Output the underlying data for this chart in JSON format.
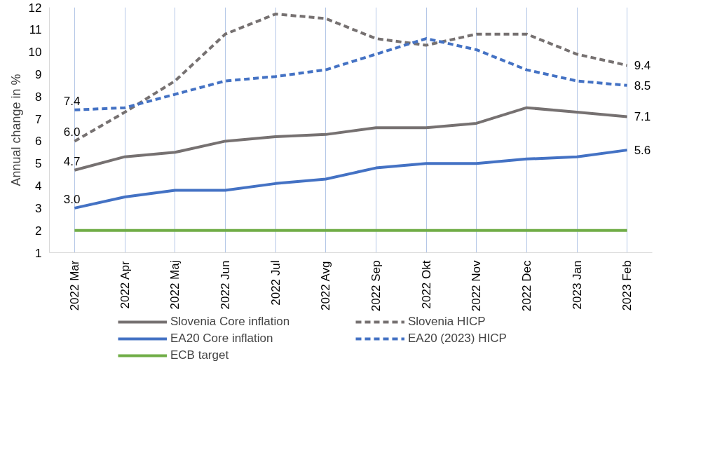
{
  "chart_data": {
    "type": "line",
    "ylabel": "Annual change in %",
    "categories": [
      "2022 Mar",
      "2022 Apr",
      "2022 Maj",
      "2022 Jun",
      "2022 Jul",
      "2022 Avg",
      "2022 Sep",
      "2022 Okt",
      "2022 Nov",
      "2022 Dec",
      "2023 Jan",
      "2023 Feb"
    ],
    "ylim": [
      1,
      12
    ],
    "yticks": [
      1,
      2,
      3,
      4,
      5,
      6,
      7,
      8,
      9,
      10,
      11,
      12
    ],
    "grid": "x",
    "legend": "bottom",
    "marker": "none",
    "series": [
      {
        "name": "Slovenia Core inflation",
        "color": "#767171",
        "line_style": "solid",
        "values": [
          4.7,
          5.3,
          5.5,
          6.0,
          6.2,
          6.3,
          6.6,
          6.6,
          6.8,
          7.5,
          7.3,
          7.1
        ],
        "value_labels": [
          "4.7",
          null,
          null,
          null,
          null,
          null,
          null,
          null,
          null,
          null,
          null,
          "7.1"
        ]
      },
      {
        "name": "Slovenia HICP",
        "color": "#767171",
        "line_style": "dashed",
        "values": [
          6.0,
          7.3,
          8.7,
          10.8,
          11.7,
          11.5,
          10.6,
          10.3,
          10.8,
          10.8,
          9.9,
          9.4
        ],
        "value_labels": [
          "6.0",
          null,
          null,
          null,
          null,
          null,
          null,
          null,
          null,
          null,
          null,
          "9.4"
        ]
      },
      {
        "name": "EA20 Core inflation",
        "color": "#4472c4",
        "line_style": "solid",
        "values": [
          3.0,
          3.5,
          3.8,
          3.8,
          4.1,
          4.3,
          4.8,
          5.0,
          5.0,
          5.2,
          5.3,
          5.6
        ],
        "value_labels": [
          "3.0",
          null,
          null,
          null,
          null,
          null,
          null,
          null,
          null,
          null,
          null,
          "5.6"
        ]
      },
      {
        "name": "EA20 (2023) HICP",
        "color": "#4472c4",
        "line_style": "dashed",
        "values": [
          7.4,
          7.5,
          8.1,
          8.7,
          8.9,
          9.2,
          9.9,
          10.6,
          10.1,
          9.2,
          8.7,
          8.5
        ],
        "value_labels": [
          "7.4",
          null,
          null,
          null,
          null,
          null,
          null,
          null,
          null,
          null,
          null,
          "8.5"
        ]
      },
      {
        "name": "ECB target",
        "color": "#70ad47",
        "line_style": "solid",
        "values": [
          2,
          2,
          2,
          2,
          2,
          2,
          2,
          2,
          2,
          2,
          2,
          2
        ]
      }
    ]
  }
}
